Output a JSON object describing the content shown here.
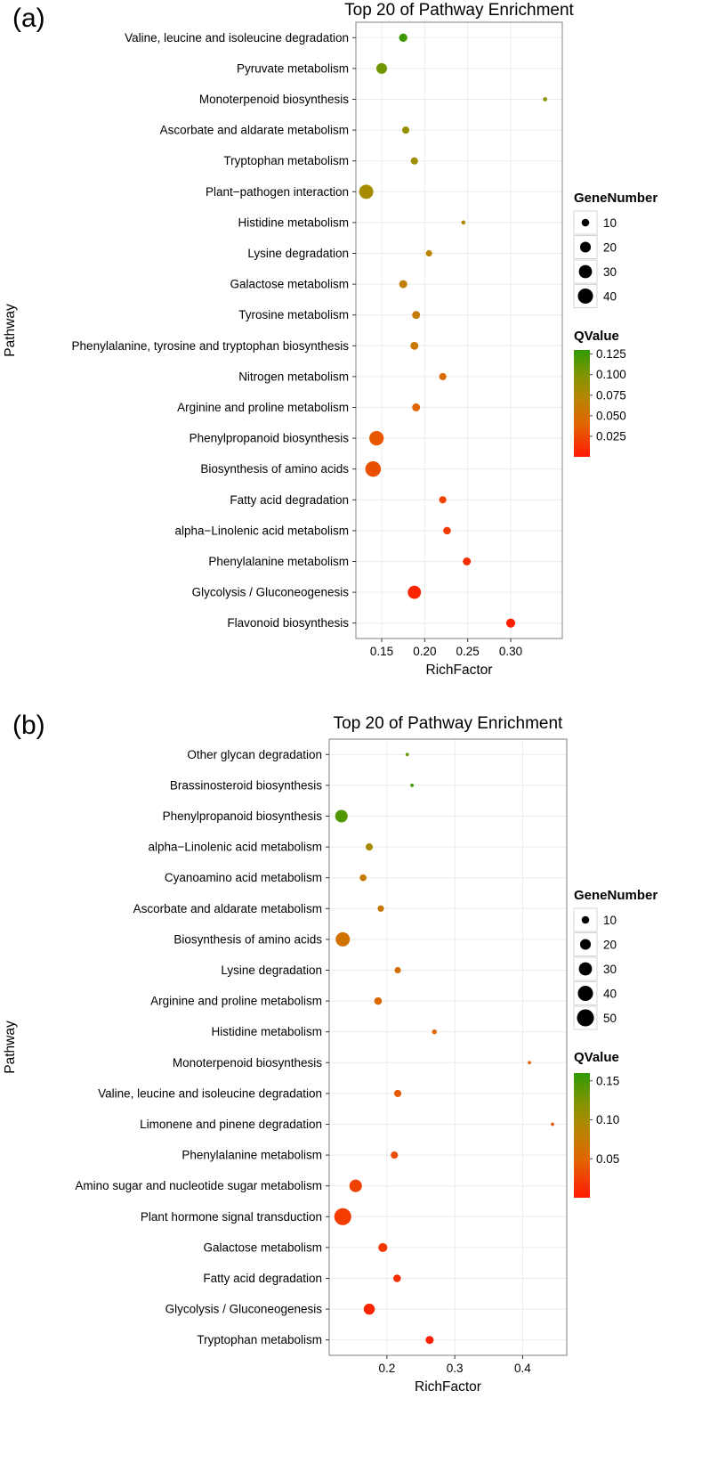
{
  "chart_data": [
    {
      "type": "scatter",
      "panel_label": "(a)",
      "title": "Top 20 of Pathway Enrichment",
      "xlabel": "RichFactor",
      "ylabel": "Pathway",
      "xlim": [
        0.12,
        0.36
      ],
      "x_ticks": [
        0.15,
        0.2,
        0.25,
        0.3
      ],
      "x_tick_labels": [
        "0.15",
        "0.20",
        "0.25",
        "0.30"
      ],
      "grid": true,
      "legend_position": "right",
      "size_legend": {
        "title": "GeneNumber",
        "values": [
          10,
          20,
          30,
          40
        ]
      },
      "color_legend": {
        "title": "QValue",
        "domain": [
          0,
          0.13
        ],
        "low_color": "#ff1a00",
        "high_color": "#309a00",
        "tick_values": [
          0.125,
          0.1,
          0.075,
          0.05,
          0.025
        ],
        "tick_labels": [
          "0.125",
          "0.100",
          "0.075",
          "0.050",
          "0.025"
        ]
      },
      "points": [
        {
          "pathway": "Valine, leucine and isoleucine degradation",
          "rich_factor": 0.175,
          "gene_number": 12,
          "qvalue": 0.125
        },
        {
          "pathway": "Pyruvate metabolism",
          "rich_factor": 0.15,
          "gene_number": 20,
          "qvalue": 0.105
        },
        {
          "pathway": "Monoterpenoid biosynthesis",
          "rich_factor": 0.34,
          "gene_number": 3,
          "qvalue": 0.095
        },
        {
          "pathway": "Ascorbate and aldarate metabolism",
          "rich_factor": 0.178,
          "gene_number": 9,
          "qvalue": 0.09
        },
        {
          "pathway": "Tryptophan metabolism",
          "rich_factor": 0.188,
          "gene_number": 9,
          "qvalue": 0.085
        },
        {
          "pathway": "Plant−pathogen interaction",
          "rich_factor": 0.132,
          "gene_number": 35,
          "qvalue": 0.08
        },
        {
          "pathway": "Histidine metabolism",
          "rich_factor": 0.245,
          "gene_number": 3,
          "qvalue": 0.075
        },
        {
          "pathway": "Lysine degradation",
          "rich_factor": 0.205,
          "gene_number": 7,
          "qvalue": 0.07
        },
        {
          "pathway": "Galactose metabolism",
          "rich_factor": 0.175,
          "gene_number": 11,
          "qvalue": 0.066
        },
        {
          "pathway": "Tyrosine metabolism",
          "rich_factor": 0.19,
          "gene_number": 11,
          "qvalue": 0.062
        },
        {
          "pathway": "Phenylalanine, tyrosine and tryptophan biosynthesis",
          "rich_factor": 0.188,
          "gene_number": 11,
          "qvalue": 0.058
        },
        {
          "pathway": "Nitrogen metabolism",
          "rich_factor": 0.221,
          "gene_number": 9,
          "qvalue": 0.045
        },
        {
          "pathway": "Arginine and proline metabolism",
          "rich_factor": 0.19,
          "gene_number": 11,
          "qvalue": 0.04
        },
        {
          "pathway": "Phenylpropanoid biosynthesis",
          "rich_factor": 0.144,
          "gene_number": 36,
          "qvalue": 0.032
        },
        {
          "pathway": "Biosynthesis of amino acids",
          "rich_factor": 0.14,
          "gene_number": 42,
          "qvalue": 0.028
        },
        {
          "pathway": "Fatty acid degradation",
          "rich_factor": 0.221,
          "gene_number": 9,
          "qvalue": 0.022
        },
        {
          "pathway": "alpha−Linolenic acid metabolism",
          "rich_factor": 0.226,
          "gene_number": 10,
          "qvalue": 0.018
        },
        {
          "pathway": "Phenylalanine metabolism",
          "rich_factor": 0.249,
          "gene_number": 11,
          "qvalue": 0.01
        },
        {
          "pathway": "Glycolysis / Gluconeogenesis",
          "rich_factor": 0.188,
          "gene_number": 30,
          "qvalue": 0.005
        },
        {
          "pathway": "Flavonoid biosynthesis",
          "rich_factor": 0.3,
          "gene_number": 14,
          "qvalue": 0.002
        }
      ]
    },
    {
      "type": "scatter",
      "panel_label": "(b)",
      "title": "Top 20 of Pathway Enrichment",
      "xlabel": "RichFactor",
      "ylabel": "Pathway",
      "xlim": [
        0.115,
        0.465
      ],
      "x_ticks": [
        0.2,
        0.3,
        0.4
      ],
      "x_tick_labels": [
        "0.2",
        "0.3",
        "0.4"
      ],
      "grid": true,
      "legend_position": "right",
      "size_legend": {
        "title": "GeneNumber",
        "values": [
          10,
          20,
          30,
          40,
          50
        ]
      },
      "color_legend": {
        "title": "QValue",
        "domain": [
          0,
          0.16
        ],
        "low_color": "#ff1a00",
        "high_color": "#309a00",
        "tick_values": [
          0.15,
          0.1,
          0.05
        ],
        "tick_labels": [
          "0.15",
          "0.10",
          "0.05"
        ]
      },
      "points": [
        {
          "pathway": "Other glycan degradation",
          "rich_factor": 0.23,
          "gene_number": 2,
          "qvalue": 0.135
        },
        {
          "pathway": "Brassinosteroid biosynthesis",
          "rich_factor": 0.237,
          "gene_number": 2,
          "qvalue": 0.15
        },
        {
          "pathway": "Phenylpropanoid biosynthesis",
          "rich_factor": 0.133,
          "gene_number": 27,
          "qvalue": 0.145
        },
        {
          "pathway": "alpha−Linolenic acid metabolism",
          "rich_factor": 0.174,
          "gene_number": 9,
          "qvalue": 0.1
        },
        {
          "pathway": "Cyanoamino acid metabolism",
          "rich_factor": 0.165,
          "gene_number": 8,
          "qvalue": 0.075
        },
        {
          "pathway": "Ascorbate and aldarate metabolism",
          "rich_factor": 0.191,
          "gene_number": 7,
          "qvalue": 0.07
        },
        {
          "pathway": "Biosynthesis of amino acids",
          "rich_factor": 0.135,
          "gene_number": 35,
          "qvalue": 0.065
        },
        {
          "pathway": "Lysine degradation",
          "rich_factor": 0.216,
          "gene_number": 7,
          "qvalue": 0.06
        },
        {
          "pathway": "Arginine and proline metabolism",
          "rich_factor": 0.187,
          "gene_number": 10,
          "qvalue": 0.055
        },
        {
          "pathway": "Histidine metabolism",
          "rich_factor": 0.27,
          "gene_number": 4,
          "qvalue": 0.05
        },
        {
          "pathway": "Monoterpenoid biosynthesis",
          "rich_factor": 0.41,
          "gene_number": 2,
          "qvalue": 0.048
        },
        {
          "pathway": "Valine, leucine and isoleucine degradation",
          "rich_factor": 0.216,
          "gene_number": 9,
          "qvalue": 0.042
        },
        {
          "pathway": "Limonene and pinene degradation",
          "rich_factor": 0.444,
          "gene_number": 2,
          "qvalue": 0.04
        },
        {
          "pathway": "Phenylalanine metabolism",
          "rich_factor": 0.211,
          "gene_number": 9,
          "qvalue": 0.032
        },
        {
          "pathway": "Amino sugar and nucleotide sugar metabolism",
          "rich_factor": 0.154,
          "gene_number": 27,
          "qvalue": 0.026
        },
        {
          "pathway": "Plant hormone signal transduction",
          "rich_factor": 0.135,
          "gene_number": 50,
          "qvalue": 0.022
        },
        {
          "pathway": "Galactose metabolism",
          "rich_factor": 0.194,
          "gene_number": 14,
          "qvalue": 0.02
        },
        {
          "pathway": "Fatty acid degradation",
          "rich_factor": 0.215,
          "gene_number": 10,
          "qvalue": 0.013
        },
        {
          "pathway": "Glycolysis / Gluconeogenesis",
          "rich_factor": 0.174,
          "gene_number": 21,
          "qvalue": 0.006
        },
        {
          "pathway": "Tryptophan metabolism",
          "rich_factor": 0.263,
          "gene_number": 11,
          "qvalue": 0.003
        }
      ]
    }
  ]
}
